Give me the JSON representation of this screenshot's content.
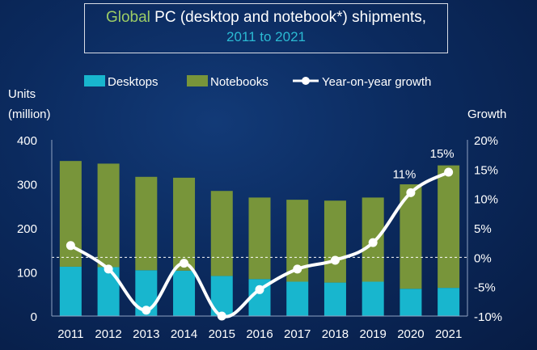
{
  "title": {
    "accent": "Global",
    "rest": "PC (desktop and notebook*) shipments,",
    "subtitle": "2011 to 2021"
  },
  "legend": {
    "desktops": "Desktops",
    "notebooks": "Notebooks",
    "growth": "Year-on-year growth"
  },
  "axes": {
    "left_label_line1": "Units",
    "left_label_line2": "(million)",
    "right_label": "Growth"
  },
  "colors": {
    "desktops": "#18b6ce",
    "notebooks": "#78953a",
    "growth_line": "#ffffff",
    "axis_text": "#ffffff",
    "title_accent": "#9ccc65",
    "title_sub": "#2bbad3",
    "background": "#0b2a5e"
  },
  "chart_data": {
    "type": "bar",
    "subtype": "stacked bar with line on secondary axis",
    "categories": [
      "2011",
      "2012",
      "2013",
      "2014",
      "2015",
      "2016",
      "2017",
      "2018",
      "2019",
      "2020",
      "2021"
    ],
    "series": [
      {
        "name": "Desktops",
        "values": [
          112,
          111,
          104,
          103,
          91,
          84,
          78,
          76,
          78,
          62,
          64
        ]
      },
      {
        "name": "Notebooks",
        "values": [
          240,
          235,
          212,
          211,
          193,
          185,
          186,
          186,
          191,
          237,
          278
        ]
      }
    ],
    "line_series": {
      "name": "Year-on-year growth",
      "values": [
        2.0,
        -2.0,
        -9.0,
        -1.0,
        -10.0,
        -5.5,
        -2.0,
        -0.5,
        2.5,
        11.0,
        14.5
      ],
      "unit": "%"
    },
    "annotations": [
      {
        "category": "2020",
        "text": "11%"
      },
      {
        "category": "2021",
        "text": "15%"
      }
    ],
    "ylim": [
      0,
      400
    ],
    "y_ticks": [
      0,
      100,
      200,
      300,
      400
    ],
    "y2lim": [
      -10,
      20
    ],
    "y2_ticks": [
      "20%",
      "15%",
      "10%",
      "5%",
      "0%",
      "-5%",
      "-10%"
    ],
    "y2_tick_values": [
      20,
      15,
      10,
      5,
      0,
      -5,
      -10
    ],
    "zero_reference_line": "dashed",
    "grid": false,
    "legend_position": "top"
  }
}
